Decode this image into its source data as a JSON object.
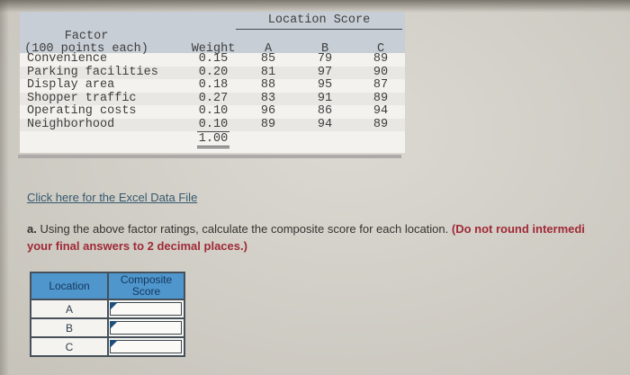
{
  "factor_table": {
    "group_header": "Location Score",
    "col_factor_line1": "Factor",
    "col_factor_line2": "(100 points each)",
    "col_weight": "Weight",
    "col_a": "A",
    "col_b": "B",
    "col_c": "C",
    "rows": [
      {
        "factor": "Convenience",
        "weight": "0.15",
        "a": "85",
        "b": "79",
        "c": "89"
      },
      {
        "factor": "Parking facilities",
        "weight": "0.20",
        "a": "81",
        "b": "97",
        "c": "90"
      },
      {
        "factor": "Display area",
        "weight": "0.18",
        "a": "88",
        "b": "95",
        "c": "87"
      },
      {
        "factor": "Shopper traffic",
        "weight": "0.27",
        "a": "83",
        "b": "91",
        "c": "89"
      },
      {
        "factor": "Operating costs",
        "weight": "0.10",
        "a": "96",
        "b": "86",
        "c": "94"
      },
      {
        "factor": "Neighborhood",
        "weight": "0.10",
        "a": "89",
        "b": "94",
        "c": "89"
      }
    ],
    "weight_total": "1.00"
  },
  "excel_link": {
    "label": "Click here for the Excel Data File"
  },
  "instructions": {
    "item_label": "a.",
    "text": " Using the above factor ratings, calculate the composite score for each location. ",
    "emphasis_line1": "(Do not round intermedi",
    "emphasis_line2": "your final answers to 2 decimal places.)"
  },
  "answer_table": {
    "col_location": "Location",
    "col_composite_line1": "Composite",
    "col_composite_line2": "Score",
    "rows": [
      {
        "location": "A",
        "value": ""
      },
      {
        "location": "B",
        "value": ""
      },
      {
        "location": "C",
        "value": ""
      }
    ]
  },
  "chart_data": {
    "type": "table",
    "title": "Location Score",
    "categories": [
      "Convenience",
      "Parking facilities",
      "Display area",
      "Shopper traffic",
      "Operating costs",
      "Neighborhood"
    ],
    "series": [
      {
        "name": "Weight",
        "values": [
          0.15,
          0.2,
          0.18,
          0.27,
          0.1,
          0.1
        ]
      },
      {
        "name": "A",
        "values": [
          85,
          81,
          88,
          83,
          96,
          89
        ]
      },
      {
        "name": "B",
        "values": [
          79,
          97,
          95,
          91,
          86,
          94
        ]
      },
      {
        "name": "C",
        "values": [
          89,
          90,
          87,
          89,
          94,
          89
        ]
      }
    ],
    "weight_total": 1.0
  },
  "colors": {
    "page_background": "#d8d5cd",
    "table_header_band": "#c7ced6",
    "table_body": "#f3f2ee",
    "row_stripe": "#e9e7e3",
    "answer_header_blue": "#4e96cc",
    "answer_header_text": "#17375e",
    "link": "#35596f",
    "emphasis_red": "#9f2936",
    "flag_triangle": "#1f4e79"
  }
}
